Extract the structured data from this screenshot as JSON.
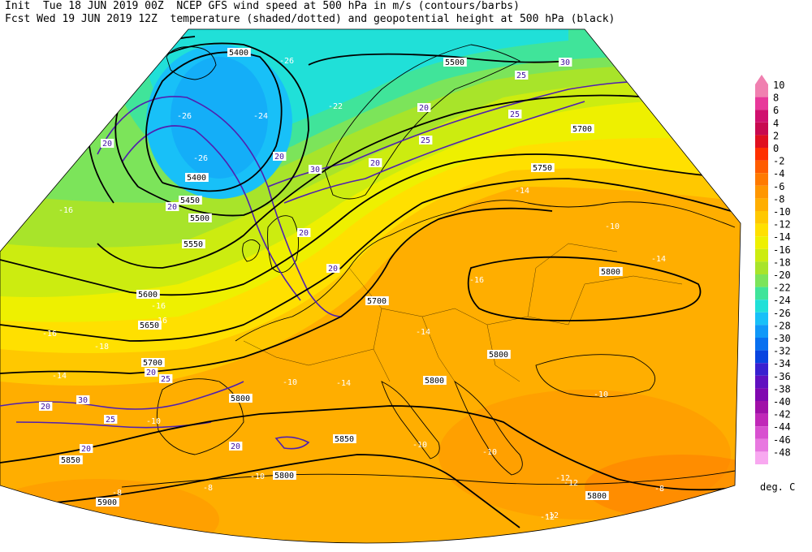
{
  "header": {
    "line1": "Init  Tue 18 JUN 2019 00Z  NCEP GFS wind speed at 500 hPa in m/s (contours/barbs)",
    "line2": "Fcst Wed 19 JUN 2019 12Z  temperature (shaded/dotted) and geopotential height at 500 hPa (black)"
  },
  "legend": {
    "unit": "deg. C",
    "levels": [
      "10",
      "8",
      "6",
      "4",
      "2",
      "0",
      "-2",
      "-4",
      "-6",
      "-8",
      "-10",
      "-12",
      "-14",
      "-16",
      "-18",
      "-20",
      "-22",
      "-24",
      "-26",
      "-28",
      "-30",
      "-32",
      "-34",
      "-36",
      "-38",
      "-40",
      "-42",
      "-44",
      "-46",
      "-48"
    ],
    "colors": [
      "#f080b0",
      "#e8389a",
      "#d0106e",
      "#c80a50",
      "#e01020",
      "#ff3000",
      "#ff5c00",
      "#ff7a00",
      "#ff9600",
      "#ffae00",
      "#ffc800",
      "#ffe000",
      "#eef000",
      "#ccec10",
      "#a8e42a",
      "#7ce45a",
      "#40e49a",
      "#20e0d8",
      "#18c0f8",
      "#1098f8",
      "#0870f0",
      "#0844e0",
      "#3820d0",
      "#6010c0",
      "#8008b0",
      "#a010a8",
      "#c028b8",
      "#d850d0",
      "#e878e0",
      "#f8a8f0"
    ]
  },
  "map": {
    "height_labels": [
      "5400",
      "5500",
      "5400",
      "5450",
      "5500",
      "5550",
      "5600",
      "5650",
      "5700",
      "5700",
      "5700",
      "5750",
      "5800",
      "5800",
      "5800",
      "5800",
      "5850",
      "5850",
      "5800",
      "5900",
      "5800"
    ],
    "temp_labels": [
      "-26",
      "-26",
      "-24",
      "-22",
      "-26",
      "-16",
      "-16",
      "-16",
      "-18",
      "-16",
      "-14",
      "-14",
      "-10",
      "-14",
      "-16",
      "-14",
      "-14",
      "-12",
      "-10",
      "-10",
      "-10",
      "-10",
      "-10",
      "-12",
      "-12",
      "-8",
      "-8",
      "-8",
      "-10",
      "-12"
    ],
    "wind_labels": [
      "30",
      "25",
      "25",
      "20",
      "20",
      "20",
      "25",
      "20",
      "20",
      "20",
      "20",
      "30",
      "20",
      "30",
      "25",
      "20",
      "25",
      "20",
      "20"
    ]
  }
}
